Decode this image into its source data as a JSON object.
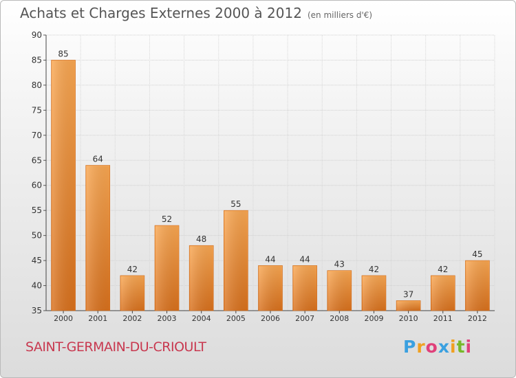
{
  "header": {
    "title": "Achats et Charges Externes 2000 à 2012",
    "subtitle": "(en milliers d'€)"
  },
  "footer": {
    "commune": "SAINT-GERMAIN-DU-CRIOULT",
    "logo": {
      "letters": [
        "P",
        "r",
        "o",
        "x",
        "i",
        "t",
        "i"
      ],
      "colors": [
        "#3aa0e0",
        "#f0a020",
        "#e0407a",
        "#3aa0e0",
        "#f0a020",
        "#77b82a",
        "#e0407a"
      ]
    }
  },
  "chart_data": {
    "type": "bar",
    "title": "Achats et Charges Externes 2000 à 2012",
    "subtitle": "(en milliers d'€)",
    "categories": [
      "2000",
      "2001",
      "2002",
      "2003",
      "2004",
      "2005",
      "2006",
      "2007",
      "2008",
      "2009",
      "2010",
      "2011",
      "2012"
    ],
    "values": [
      85,
      64,
      42,
      52,
      48,
      55,
      44,
      44,
      43,
      42,
      37,
      42,
      45
    ],
    "ylim": [
      35,
      90
    ],
    "yticks": [
      35,
      40,
      45,
      50,
      55,
      60,
      65,
      70,
      75,
      80,
      85,
      90
    ],
    "grid": true,
    "bar_color": "#f0902e",
    "xlabel": "",
    "ylabel": ""
  }
}
